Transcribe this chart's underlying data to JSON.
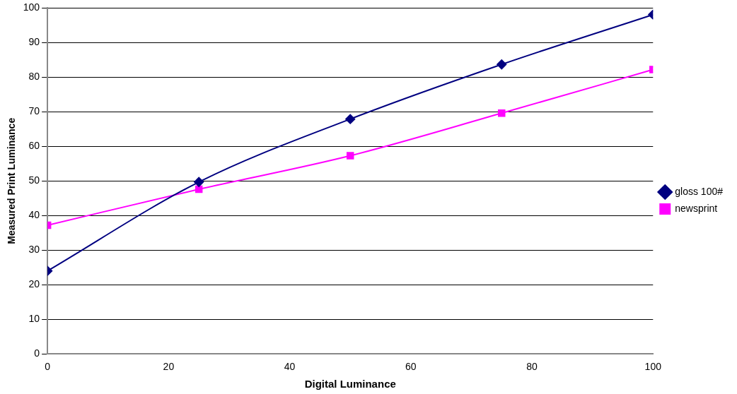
{
  "chart_data": {
    "type": "line",
    "xlabel": "Digital Luminance",
    "ylabel": "Measured Print Luminance",
    "x": [
      0,
      25,
      50,
      75,
      100
    ],
    "series": [
      {
        "name": "gloss 100#",
        "color": "#000080",
        "marker": "diamond",
        "values": [
          24,
          49.7,
          67.9,
          83.7,
          98.1
        ]
      },
      {
        "name": "newsprint",
        "color": "#ff00ff",
        "marker": "square",
        "values": [
          37.2,
          47.6,
          57.3,
          69.6,
          82.2
        ]
      }
    ],
    "xlim": [
      0,
      100
    ],
    "xticks": [
      0,
      20,
      40,
      60,
      80,
      100
    ],
    "ylim": [
      0,
      100
    ],
    "yticks": [
      0,
      10,
      20,
      30,
      40,
      50,
      60,
      70,
      80,
      90,
      100
    ],
    "grid": "y",
    "legend": "right",
    "line_style": "solid"
  }
}
